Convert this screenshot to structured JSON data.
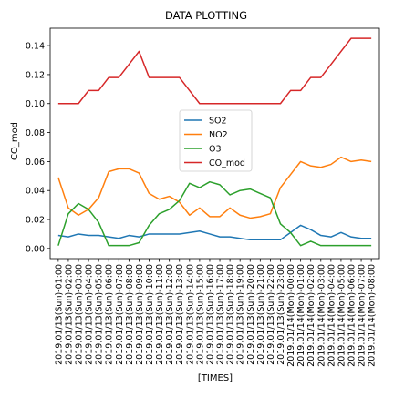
{
  "chart_data": {
    "type": "line",
    "title": "DATA PLOTTING",
    "xlabel": "[TIMES]",
    "ylabel": "CO_mod",
    "ylim": [
      -0.007,
      0.152
    ],
    "yticks": [
      0.0,
      0.02,
      0.04,
      0.06,
      0.08,
      0.1,
      0.12,
      0.14
    ],
    "ytick_labels": [
      "0.00",
      "0.02",
      "0.04",
      "0.06",
      "0.08",
      "0.10",
      "0.12",
      "0.14"
    ],
    "grid": false,
    "legend_position": "center",
    "categories": [
      "2019.01/13(Sun)-01:00",
      "2019.01/13(Sun)-02:00",
      "2019.01/13(Sun)-03:00",
      "2019.01/13(Sun)-04:00",
      "2019.01/13(Sun)-05:00",
      "2019.01/13(Sun)-06:00",
      "2019.01/13(Sun)-07:00",
      "2019.01/13(Sun)-08:00",
      "2019.01/13(Sun)-09:00",
      "2019.01/13(Sun)-10:00",
      "2019.01/13(Sun)-11:00",
      "2019.01/13(Sun)-12:00",
      "2019.01/13(Sun)-13:00",
      "2019.01/13(Sun)-14:00",
      "2019.01/13(Sun)-15:00",
      "2019.01/13(Sun)-16:00",
      "2019.01/13(Sun)-17:00",
      "2019.01/13(Sun)-18:00",
      "2019.01/13(Sun)-19:00",
      "2019.01/13(Sun)-20:00",
      "2019.01/13(Sun)-21:00",
      "2019.01/13(Sun)-22:00",
      "2019.01/13(Sun)-23:00",
      "2019.01/14(Mon)-00:00",
      "2019.01/14(Mon)-01:00",
      "2019.01/14(Mon)-02:00",
      "2019.01/14(Mon)-03:00",
      "2019.01/14(Mon)-04:00",
      "2019.01/14(Mon)-05:00",
      "2019.01/14(Mon)-06:00",
      "2019.01/14(Mon)-07:00",
      "2019.01/14(Mon)-08:00"
    ],
    "series": [
      {
        "name": "SO2",
        "color": "#1f77b4",
        "values": [
          0.009,
          0.008,
          0.01,
          0.009,
          0.009,
          0.008,
          0.007,
          0.009,
          0.008,
          0.01,
          0.01,
          0.01,
          0.01,
          0.011,
          0.012,
          0.01,
          0.008,
          0.008,
          0.007,
          0.006,
          0.006,
          0.006,
          0.006,
          0.011,
          0.016,
          0.013,
          0.009,
          0.008,
          0.011,
          0.008,
          0.007,
          0.007
        ]
      },
      {
        "name": "NO2",
        "color": "#ff7f0e",
        "values": [
          0.049,
          0.028,
          0.023,
          0.027,
          0.035,
          0.053,
          0.055,
          0.055,
          0.052,
          0.038,
          0.034,
          0.036,
          0.032,
          0.023,
          0.028,
          0.022,
          0.022,
          0.028,
          0.023,
          0.021,
          0.022,
          0.024,
          0.042,
          0.051,
          0.06,
          0.057,
          0.056,
          0.058,
          0.063,
          0.06,
          0.061,
          0.06
        ]
      },
      {
        "name": "O3",
        "color": "#2ca02c",
        "values": [
          0.002,
          0.024,
          0.031,
          0.027,
          0.018,
          0.002,
          0.002,
          0.002,
          0.004,
          0.016,
          0.024,
          0.027,
          0.033,
          0.045,
          0.042,
          0.046,
          0.044,
          0.037,
          0.04,
          0.041,
          0.038,
          0.035,
          0.017,
          0.011,
          0.002,
          0.005,
          0.002,
          0.002,
          0.002,
          0.002,
          0.002,
          0.002
        ]
      },
      {
        "name": "CO_mod",
        "color": "#d62728",
        "values": [
          0.1,
          0.1,
          0.1,
          0.109,
          0.109,
          0.118,
          0.118,
          0.127,
          0.136,
          0.118,
          0.118,
          0.118,
          0.118,
          0.109,
          0.1,
          0.1,
          0.1,
          0.1,
          0.1,
          0.1,
          0.1,
          0.1,
          0.1,
          0.109,
          0.109,
          0.118,
          0.118,
          0.127,
          0.136,
          0.145,
          0.145,
          0.145
        ]
      }
    ]
  }
}
